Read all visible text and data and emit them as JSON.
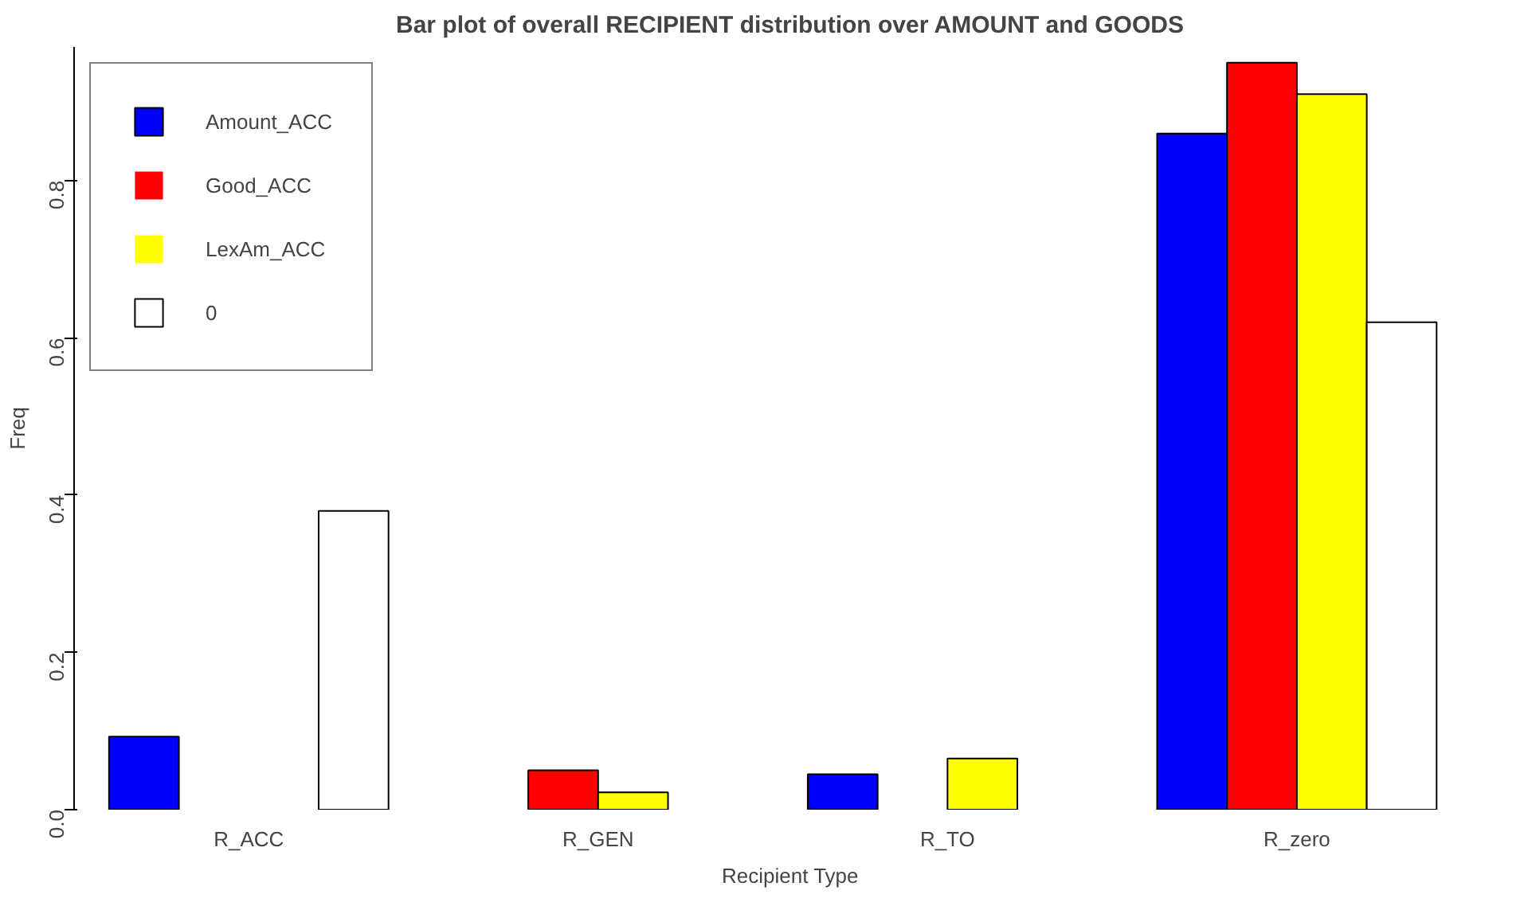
{
  "chart_data": {
    "type": "bar",
    "title": "Bar plot of overall RECIPIENT distribution over AMOUNT and GOODS",
    "xlabel": "Recipient Type",
    "ylabel": "Freq",
    "categories": [
      "R_ACC",
      "R_GEN",
      "R_TO",
      "R_zero"
    ],
    "series": [
      {
        "name": "Amount_ACC",
        "color": "#0000ff",
        "values": [
          0.093,
          0,
          0.045,
          0.86
        ]
      },
      {
        "name": "Good_ACC",
        "color": "#ff0000",
        "values": [
          0,
          0.05,
          0,
          0.95
        ]
      },
      {
        "name": "LexAm_ACC",
        "color": "#ffff00",
        "values": [
          0,
          0.022,
          0.065,
          0.91
        ]
      },
      {
        "name": "0",
        "color": "#ffffff",
        "values": [
          0.38,
          0,
          0,
          0.62
        ]
      }
    ],
    "ylim": [
      0,
      0.97
    ],
    "yticks": [
      {
        "value": 0,
        "label": "0.0"
      },
      {
        "value": 0.2,
        "label": "0.2"
      },
      {
        "value": 0.4,
        "label": "0.4"
      },
      {
        "value": 0.6,
        "label": "0.6"
      },
      {
        "value": 0.8,
        "label": "0.8"
      }
    ],
    "grid": false,
    "legend": "top left"
  }
}
